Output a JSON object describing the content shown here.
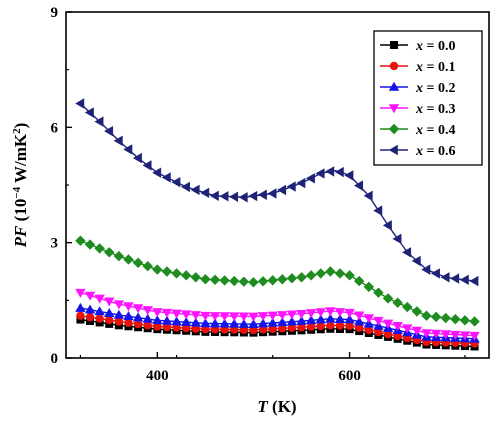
{
  "chart_data": {
    "type": "line",
    "xlabel": {
      "var": "T",
      "rest": " (K)"
    },
    "ylabel": {
      "var": "PF",
      "rest": " (10",
      "sup": "−4",
      "rest2": " W/mK",
      "sup2": "2",
      "rest3": ")"
    },
    "xlim": [
      305,
      745
    ],
    "ylim": [
      0,
      9
    ],
    "xticks": [
      400,
      600
    ],
    "yticks": [
      0,
      3,
      6,
      9
    ],
    "xtick_labels": [
      "400",
      "600"
    ],
    "ytick_labels": [
      "0",
      "3",
      "6",
      "9"
    ],
    "legend": {
      "placement": "top-right"
    },
    "series": [
      {
        "name": "x = 0.0",
        "var": "x",
        "eq": " = 0.0",
        "color": "#000000",
        "marker": "square",
        "x": [
          320,
          360,
          400,
          450,
          500,
          550,
          580,
          600,
          640,
          680,
          730
        ],
        "y": [
          1.0,
          0.85,
          0.75,
          0.68,
          0.66,
          0.72,
          0.76,
          0.75,
          0.55,
          0.35,
          0.3
        ]
      },
      {
        "name": "x = 0.1",
        "var": "x",
        "eq": " = 0.1",
        "color": "#e8140c",
        "marker": "circle",
        "x": [
          320,
          360,
          400,
          450,
          500,
          550,
          580,
          600,
          640,
          680,
          730
        ],
        "y": [
          1.1,
          0.95,
          0.82,
          0.75,
          0.73,
          0.8,
          0.85,
          0.84,
          0.62,
          0.42,
          0.38
        ]
      },
      {
        "name": "x = 0.2",
        "var": "x",
        "eq": " = 0.2",
        "color": "#1414e8",
        "marker": "triangle-up",
        "x": [
          320,
          360,
          400,
          450,
          500,
          550,
          580,
          600,
          640,
          680,
          730
        ],
        "y": [
          1.3,
          1.12,
          0.98,
          0.9,
          0.88,
          0.96,
          1.02,
          1.0,
          0.78,
          0.55,
          0.5
        ]
      },
      {
        "name": "x = 0.3",
        "var": "x",
        "eq": " = 0.3",
        "color": "#ff14ff",
        "marker": "triangle-down",
        "x": [
          320,
          360,
          400,
          450,
          500,
          550,
          580,
          600,
          640,
          680,
          730
        ],
        "y": [
          1.7,
          1.4,
          1.2,
          1.1,
          1.08,
          1.15,
          1.22,
          1.18,
          0.9,
          0.65,
          0.58
        ]
      },
      {
        "name": "x = 0.4",
        "var": "x",
        "eq": " = 0.4",
        "color": "#1e8c1e",
        "marker": "diamond",
        "x": [
          320,
          360,
          400,
          450,
          500,
          550,
          580,
          600,
          640,
          680,
          730
        ],
        "y": [
          3.05,
          2.65,
          2.3,
          2.05,
          1.97,
          2.1,
          2.25,
          2.15,
          1.55,
          1.1,
          0.95
        ]
      },
      {
        "name": "x = 0.6",
        "var": "x",
        "eq": " = 0.6",
        "color": "#1e2378",
        "marker": "triangle-left",
        "x": [
          320,
          340,
          360,
          380,
          400,
          430,
          460,
          490,
          520,
          550,
          570,
          585,
          600,
          620,
          640,
          660,
          680,
          700,
          730
        ],
        "y": [
          6.62,
          6.15,
          5.65,
          5.2,
          4.82,
          4.45,
          4.22,
          4.18,
          4.28,
          4.55,
          4.8,
          4.88,
          4.75,
          4.22,
          3.45,
          2.75,
          2.3,
          2.1,
          2.0
        ]
      }
    ]
  }
}
